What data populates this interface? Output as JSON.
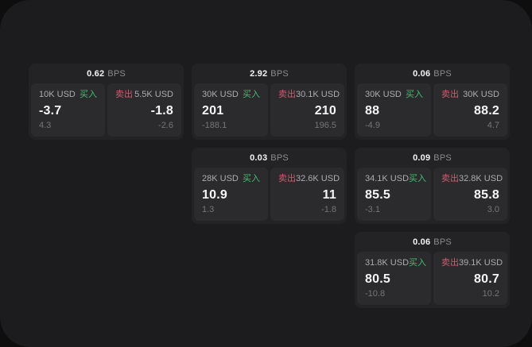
{
  "colors": {
    "buy_green": "#3fbf70",
    "sell_red": "#d25a6e",
    "panel_bg": "#1c1c1e",
    "card_bg": "#232325",
    "tile_bg": "#2b2b2d"
  },
  "labels": {
    "buy": "买入",
    "sell": "卖出",
    "bps_unit": "BPS"
  },
  "cards": [
    {
      "bps": "0.62",
      "buy": {
        "amount": "10K USD",
        "price": "-3.7",
        "delta": "4.3"
      },
      "sell": {
        "amount": "5.5K USD",
        "price": "-1.8",
        "delta": "-2.6"
      }
    },
    {
      "bps": "2.92",
      "buy": {
        "amount": "30K USD",
        "price": "201",
        "delta": "-188.1"
      },
      "sell": {
        "amount": "30.1K USD",
        "price": "210",
        "delta": "196.5"
      }
    },
    {
      "bps": "0.06",
      "buy": {
        "amount": "30K USD",
        "price": "88",
        "delta": "-4.9"
      },
      "sell": {
        "amount": "30K USD",
        "price": "88.2",
        "delta": "4.7"
      }
    },
    {
      "bps": "0.03",
      "buy": {
        "amount": "28K USD",
        "price": "10.9",
        "delta": "1.3"
      },
      "sell": {
        "amount": "32.6K USD",
        "price": "11",
        "delta": "-1.8"
      }
    },
    {
      "bps": "0.09",
      "buy": {
        "amount": "34.1K USD",
        "price": "85.5",
        "delta": "-3.1"
      },
      "sell": {
        "amount": "32.8K USD",
        "price": "85.8",
        "delta": "3.0"
      }
    },
    {
      "bps": "0.06",
      "buy": {
        "amount": "31.8K USD",
        "price": "80.5",
        "delta": "-10.8"
      },
      "sell": {
        "amount": "39.1K USD",
        "price": "80.7",
        "delta": "10.2"
      }
    }
  ]
}
